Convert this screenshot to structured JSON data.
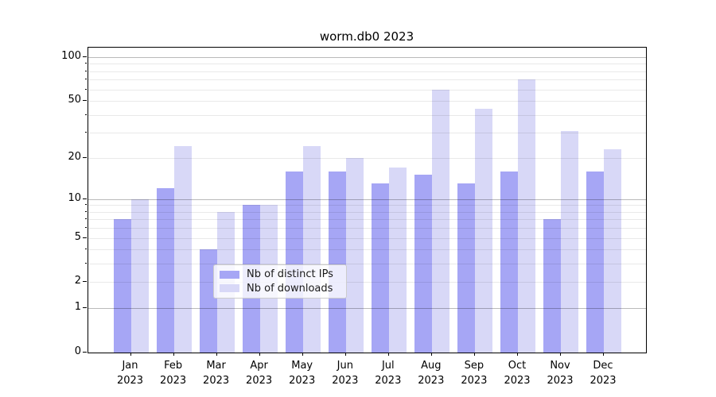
{
  "chart_data": {
    "type": "bar",
    "title": "worm.db0 2023",
    "categories": [
      "Jan 2023",
      "Feb 2023",
      "Mar 2023",
      "Apr 2023",
      "May 2023",
      "Jun 2023",
      "Jul 2023",
      "Aug 2023",
      "Sep 2023",
      "Oct 2023",
      "Nov 2023",
      "Dec 2023"
    ],
    "series": [
      {
        "name": "Nb of distinct IPs",
        "color": "#a6a6f5",
        "values": [
          7,
          12,
          4,
          9,
          16,
          16,
          13,
          15,
          13,
          16,
          7,
          16
        ]
      },
      {
        "name": "Nb of downloads",
        "color": "#d8d8f7",
        "values": [
          10,
          24,
          8,
          9,
          24,
          20,
          17,
          60,
          44,
          70,
          31,
          23
        ]
      }
    ],
    "xlabel": "",
    "ylabel": "",
    "yscale": "log1p",
    "ylim": [
      0,
      100
    ],
    "y_tick_values": [
      100,
      50,
      20,
      10,
      5,
      2,
      1,
      0
    ],
    "y_minor_grid_values": [
      2,
      3,
      4,
      5,
      6,
      7,
      8,
      9,
      20,
      30,
      40,
      50,
      60,
      70,
      80,
      90
    ],
    "y_major_grid_values": [
      1,
      10,
      100
    ],
    "grid": "both",
    "legend_position": "lower center",
    "colors": {
      "bar_distinct_ips": "#a6a6f5",
      "bar_downloads": "#d8d8f7",
      "axis": "#000000",
      "background": "#ffffff"
    }
  }
}
